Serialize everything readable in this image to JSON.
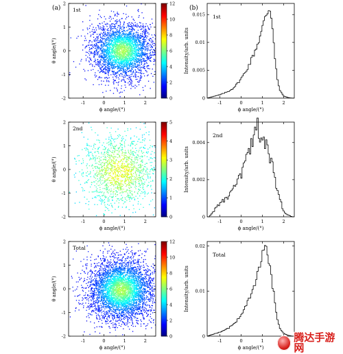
{
  "figure": {
    "panel_a_label": "(a)",
    "panel_b_label": "(b)",
    "colormap_name": "jet"
  },
  "chart_data": [
    {
      "type": "scatter",
      "label": "1st",
      "xlabel": "ϕ angle/(°)",
      "ylabel": "θ angle/(°)",
      "xlim": [
        -1.7,
        2.5
      ],
      "ylim": [
        -2,
        2
      ],
      "xticks": [
        -1,
        0,
        1,
        2
      ],
      "yticks": [
        -2,
        -1,
        0,
        1,
        2
      ],
      "center": [
        0.9,
        0.0
      ],
      "spread": [
        0.75,
        0.6
      ],
      "n_points": 3200,
      "colorbar_ticks": [
        0,
        2,
        4,
        6,
        8,
        10,
        12
      ],
      "colorbar_max": 12
    },
    {
      "type": "scatter",
      "label": "2nd",
      "xlabel": "ϕ angle/(°)",
      "ylabel": "θ angle/(°)",
      "xlim": [
        -1.7,
        2.5
      ],
      "ylim": [
        -2,
        2
      ],
      "xticks": [
        -1,
        0,
        1,
        2
      ],
      "yticks": [
        -2,
        -1,
        0,
        1,
        2
      ],
      "center": [
        0.75,
        -0.1
      ],
      "spread": [
        0.9,
        0.75
      ],
      "n_points": 1500,
      "colorbar_ticks": [
        0,
        1,
        2,
        3,
        4,
        5
      ],
      "colorbar_max": 5
    },
    {
      "type": "scatter",
      "label": "Total",
      "xlabel": "ϕ angle/(°)",
      "ylabel": "θ angle/(°)",
      "xlim": [
        -1.7,
        2.5
      ],
      "ylim": [
        -2,
        2
      ],
      "xticks": [
        -1,
        0,
        1,
        2
      ],
      "yticks": [
        -2,
        -1,
        0,
        1,
        2
      ],
      "center": [
        0.85,
        -0.05
      ],
      "spread": [
        0.8,
        0.66
      ],
      "n_points": 4200,
      "colorbar_ticks": [
        0,
        2,
        4,
        6,
        8,
        10,
        12
      ],
      "colorbar_max": 12
    },
    {
      "type": "line",
      "label": "1st",
      "xlabel": "ϕ angle/(°)",
      "ylabel": "Intensity/arb. units",
      "xlim": [
        -1.6,
        2.5
      ],
      "ylim": [
        0,
        0.017
      ],
      "xticks": [
        -1,
        0,
        1,
        2
      ],
      "yticks": [
        0,
        0.005,
        0.01,
        0.015
      ],
      "x": [
        -1.6,
        -1.4,
        -1.2,
        -1.0,
        -0.8,
        -0.6,
        -0.4,
        -0.2,
        0.0,
        0.2,
        0.4,
        0.6,
        0.8,
        1.0,
        1.1,
        1.2,
        1.3,
        1.35,
        1.4,
        1.5,
        1.6,
        1.7,
        1.8,
        2.0,
        2.2,
        2.4
      ],
      "values": [
        0.0,
        0.0002,
        0.0004,
        0.0006,
        0.0009,
        0.0012,
        0.0017,
        0.0025,
        0.0035,
        0.0047,
        0.0062,
        0.008,
        0.01,
        0.0125,
        0.014,
        0.0152,
        0.016,
        0.0165,
        0.015,
        0.012,
        0.007,
        0.0035,
        0.0015,
        0.0004,
        0.0001,
        0.0
      ]
    },
    {
      "type": "line",
      "label": "2nd",
      "xlabel": "ϕ angle/(°)",
      "ylabel": "Intensity/arb. units",
      "xlim": [
        -1.6,
        2.5
      ],
      "ylim": [
        0,
        0.0051
      ],
      "xticks": [
        -1,
        0,
        1,
        2
      ],
      "yticks": [
        0,
        0.002,
        0.004
      ],
      "x": [
        -1.5,
        -1.3,
        -1.1,
        -0.9,
        -0.7,
        -0.5,
        -0.3,
        -0.1,
        0.1,
        0.3,
        0.5,
        0.7,
        0.8,
        0.9,
        1.0,
        1.1,
        1.2,
        1.4,
        1.6,
        1.8,
        2.0,
        2.2,
        2.4
      ],
      "values": [
        0.0,
        0.0003,
        0.0006,
        0.0008,
        0.001,
        0.0012,
        0.0016,
        0.002,
        0.0026,
        0.0032,
        0.0038,
        0.0044,
        0.0049,
        0.0045,
        0.0046,
        0.0041,
        0.0036,
        0.003,
        0.002,
        0.001,
        0.0003,
        0.0001,
        0.0
      ]
    },
    {
      "type": "line",
      "label": "Total",
      "xlabel": "ϕ angle/(°)",
      "ylabel": "Intensity/arb. units",
      "xlim": [
        -1.6,
        2.5
      ],
      "ylim": [
        0,
        0.021
      ],
      "xticks": [
        -1,
        0,
        1,
        2
      ],
      "yticks": [
        0,
        0.01,
        0.02
      ],
      "x": [
        -1.6,
        -1.4,
        -1.2,
        -1.0,
        -0.8,
        -0.6,
        -0.4,
        -0.2,
        0.0,
        0.2,
        0.4,
        0.6,
        0.8,
        0.9,
        1.0,
        1.1,
        1.2,
        1.3,
        1.4,
        1.5,
        1.6,
        1.7,
        1.8,
        2.0,
        2.2,
        2.4
      ],
      "values": [
        0.0,
        0.0003,
        0.0006,
        0.0009,
        0.0013,
        0.0018,
        0.0025,
        0.0035,
        0.0048,
        0.0065,
        0.0085,
        0.011,
        0.014,
        0.0165,
        0.0185,
        0.0195,
        0.019,
        0.017,
        0.014,
        0.0105,
        0.007,
        0.004,
        0.002,
        0.0006,
        0.0002,
        0.0
      ]
    }
  ],
  "watermark": {
    "text": "腾达手游网"
  }
}
